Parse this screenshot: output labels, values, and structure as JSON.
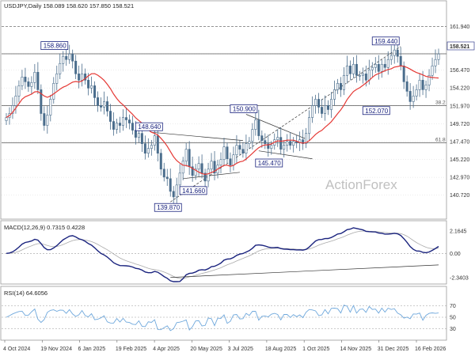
{
  "chart_data": {
    "type": "candlestick",
    "header": "USDJPY,Daily  158.089 158.620 157.850 158.521",
    "watermark": "ActionForex",
    "price": {
      "ylim": [
        138.2,
        163.9
      ],
      "yticks": [
        "161.940",
        "158.521",
        "156.470",
        "154.220",
        "151.970",
        "149.720",
        "147.470",
        "145.220",
        "142.970",
        "140.720"
      ],
      "last_price": "158.521",
      "hlines": [
        {
          "value": 161.94,
          "style": "dashed",
          "label": ""
        },
        {
          "value": 158.521,
          "style": "solid",
          "label": ""
        },
        {
          "value": 152.0,
          "style": "solid",
          "label": "38.2"
        },
        {
          "value": 147.3,
          "style": "solid",
          "label": "61.8"
        }
      ],
      "annotations": [
        "158.860",
        "148.640",
        "139.870",
        "141.660",
        "150.900",
        "145.470",
        "159.440",
        "152.070"
      ],
      "close_series": [
        150.5,
        151.0,
        152.0,
        153.2,
        154.5,
        155.6,
        155.0,
        154.4,
        154.9,
        156.2,
        154.0,
        151.0,
        149.5,
        150.8,
        152.8,
        154.8,
        156.0,
        157.3,
        158.2,
        157.8,
        158.5,
        157.6,
        156.0,
        155.2,
        156.0,
        155.2,
        154.2,
        154.5,
        153.0,
        152.0,
        151.8,
        152.5,
        151.3,
        150.0,
        149.0,
        149.8,
        149.5,
        150.5,
        150.2,
        149.8,
        148.9,
        148.0,
        148.5,
        147.2,
        146.0,
        146.6,
        147.0,
        148.2,
        146.0,
        144.0,
        143.0,
        142.8,
        141.2,
        140.5,
        142.0,
        143.5,
        145.0,
        146.5,
        144.3,
        143.2,
        144.0,
        144.7,
        143.5,
        142.5,
        144.0,
        145.0,
        143.5,
        144.5,
        145.2,
        146.8,
        145.3,
        144.5,
        145.8,
        147.0,
        146.5,
        146.0,
        147.2,
        147.5,
        149.0,
        150.2,
        148.2,
        147.6,
        147.2,
        146.6,
        147.0,
        147.7,
        148.0,
        146.5,
        147.0,
        147.5,
        147.0,
        147.5,
        147.3,
        147.7,
        147.2,
        148.5,
        150.5,
        152.0,
        152.8,
        151.8,
        151.0,
        152.0,
        151.5,
        152.8,
        154.0,
        154.8,
        154.0,
        155.8,
        157.0,
        156.0,
        157.2,
        155.8,
        155.8,
        156.0,
        155.2,
        156.5,
        156.8,
        157.2,
        156.3,
        157.2,
        156.8,
        157.8,
        158.3,
        159.0,
        158.2,
        157.0,
        155.0,
        153.8,
        152.5,
        153.2,
        154.0,
        155.2,
        154.0,
        154.6,
        155.8,
        157.0,
        157.8,
        158.5
      ]
    },
    "x_ticks": [
      "4 Oct 2024",
      "19 Nov 2024",
      "6 Jan 2025",
      "19 Feb 2025",
      "4 Apr 2025",
      "20 May 2025",
      "3 Jul 2025",
      "18 Aug 2025",
      "1 Oct 2025",
      "14 Nov 2025",
      "31 Dec 2025",
      "16 Feb 2026"
    ],
    "macd": {
      "label": "MACD(12,26,9) 0.7315 0.4228",
      "yticks": [
        "2.1645",
        "0.00",
        "-2.3403"
      ],
      "ylim": [
        -2.7,
        2.6
      ]
    },
    "rsi": {
      "label": "RSI(14) 64.6056",
      "yticks": [
        "70",
        "50",
        "30"
      ],
      "ylim": [
        15,
        85
      ]
    },
    "colors": {
      "candle": "#4a6d8c",
      "ma": "#e53935",
      "indicator": "#1a237e",
      "rsi": "#6fa8dc",
      "grid": "#d9d9d9",
      "box": "#1a237e"
    }
  }
}
